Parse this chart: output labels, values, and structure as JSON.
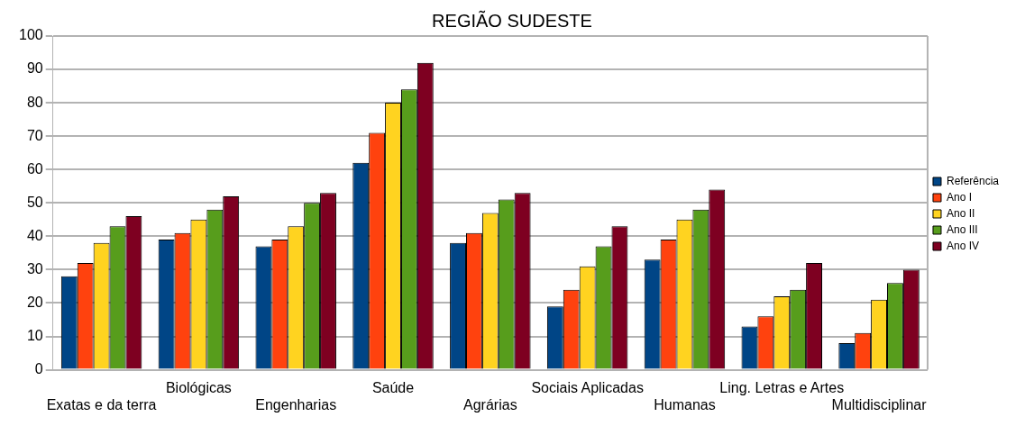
{
  "chart_data": {
    "type": "bar",
    "title": "REGIÃO SUDESTE",
    "categories": [
      "Exatas e da terra",
      "Biológicas",
      "Engenharias",
      "Saúde",
      "Agrárias",
      "Sociais Aplicadas",
      "Humanas",
      "Ling. Letras e Artes",
      "Multidisciplinar"
    ],
    "series": [
      {
        "name": "Referência",
        "color": "#004586",
        "values": [
          28,
          39,
          37,
          62,
          38,
          19,
          33,
          13,
          8
        ]
      },
      {
        "name": "Ano I",
        "color": "#ff420e",
        "values": [
          32,
          41,
          39,
          71,
          41,
          24,
          39,
          16,
          11
        ]
      },
      {
        "name": "Ano II",
        "color": "#ffd320",
        "values": [
          38,
          45,
          43,
          80,
          47,
          31,
          45,
          22,
          21
        ]
      },
      {
        "name": "Ano III",
        "color": "#579d1c",
        "values": [
          43,
          48,
          50,
          84,
          51,
          37,
          48,
          24,
          26
        ]
      },
      {
        "name": "Ano IV",
        "color": "#7e0021",
        "values": [
          46,
          52,
          53,
          92,
          53,
          43,
          54,
          32,
          30
        ]
      }
    ],
    "ylim": [
      0,
      100
    ],
    "yticks": [
      0,
      10,
      20,
      30,
      40,
      50,
      60,
      70,
      80,
      90,
      100
    ],
    "grid": "y",
    "legend": "right"
  }
}
